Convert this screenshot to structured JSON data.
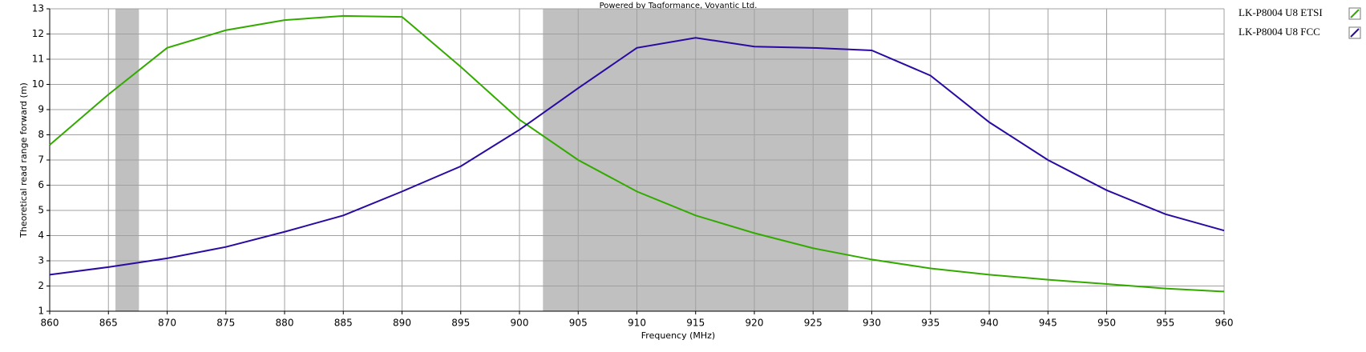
{
  "chart_data": {
    "type": "line",
    "title": "Powered by Tagformance, Voyantic Ltd.",
    "x_label": "Frequency (MHz)",
    "y_label": "Theoretical read range forward (m)",
    "x": [
      860,
      865,
      870,
      875,
      880,
      885,
      890,
      895,
      900,
      905,
      910,
      915,
      920,
      925,
      930,
      935,
      940,
      945,
      950,
      955,
      960
    ],
    "series": [
      {
        "name": "LK-P8004 U8 ETSI",
        "color": "#33aa00",
        "values": [
          7.6,
          9.6,
          11.45,
          12.15,
          12.55,
          12.72,
          12.68,
          10.7,
          8.6,
          7.0,
          5.75,
          4.8,
          4.1,
          3.5,
          3.05,
          2.7,
          2.45,
          2.25,
          2.08,
          1.9,
          1.78
        ]
      },
      {
        "name": "LK-P8004 U8 FCC",
        "color": "#2a0aa0",
        "values": [
          2.45,
          2.75,
          3.1,
          3.55,
          4.15,
          4.8,
          5.75,
          6.75,
          8.2,
          9.85,
          11.45,
          11.85,
          11.5,
          11.45,
          11.35,
          10.35,
          8.5,
          7.0,
          5.8,
          4.85,
          4.2
        ]
      }
    ],
    "bands": [
      [
        865.6,
        867.6
      ],
      [
        902,
        928
      ]
    ],
    "band_color": "#c0c0c0",
    "xlim": [
      860,
      960
    ],
    "ylim": [
      1,
      13
    ],
    "xticks": [
      860,
      865,
      870,
      875,
      880,
      885,
      890,
      895,
      900,
      905,
      910,
      915,
      920,
      925,
      930,
      935,
      940,
      945,
      950,
      955,
      960
    ],
    "yticks": [
      1,
      2,
      3,
      4,
      5,
      6,
      7,
      8,
      9,
      10,
      11,
      12,
      13
    ],
    "grid": true,
    "legend": "right"
  }
}
